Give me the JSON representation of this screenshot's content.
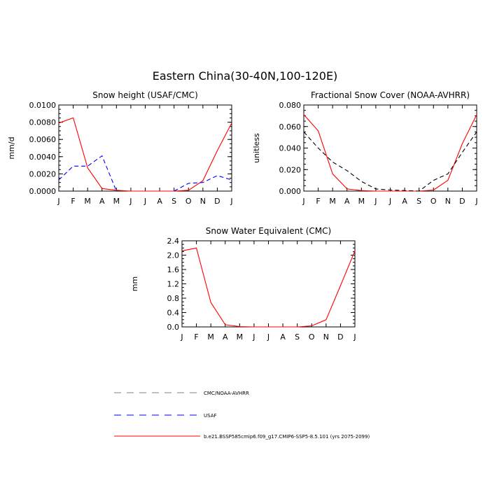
{
  "page_title": "Eastern China(30-40N,100-120E)",
  "legend": [
    {
      "label": "CMC/NOAA-AVHRR",
      "color": "#808080",
      "dash": "dashed"
    },
    {
      "label": "USAF",
      "color": "#0000ff",
      "dash": "dashed"
    },
    {
      "label": "b.e21.BSSP585cmip6.f09_g17.CMIP6-SSP5-8.5.101 (yrs 2075-2099)",
      "color": "#ff0000",
      "dash": "solid"
    }
  ],
  "chart_data": [
    {
      "type": "line",
      "title": "Snow height (USAF/CMC)",
      "ylabel": "mm/d",
      "categories": [
        "J",
        "F",
        "M",
        "A",
        "M",
        "J",
        "J",
        "A",
        "S",
        "O",
        "N",
        "D",
        "J"
      ],
      "ylim": [
        0,
        0.01
      ],
      "yticks": [
        "0.0000",
        "0.0020",
        "0.0040",
        "0.0060",
        "0.0080",
        "0.0100"
      ],
      "yminor": 0.0005,
      "series": [
        {
          "name": "b.e21.BSSP585cmip6.f09_g17.CMIP6-SSP5-8.5.101 (yrs 2075-2099)",
          "color": "#ff0000",
          "dash": "solid",
          "values": [
            0.0079,
            0.0085,
            0.0027,
            0.0003,
            0.0001,
            0.0,
            0.0,
            0.0,
            0.0,
            0.0001,
            0.0012,
            0.0047,
            0.0079
          ]
        },
        {
          "name": "USAF",
          "color": "#0000ff",
          "dash": "dashed",
          "values": [
            0.0013,
            0.0029,
            0.0029,
            0.0041,
            0.0,
            null,
            null,
            null,
            0.0,
            0.0009,
            0.001,
            0.0018,
            0.0013
          ]
        }
      ]
    },
    {
      "type": "line",
      "title": "Fractional Snow Cover (NOAA-AVHRR)",
      "ylabel": "unitless",
      "categories": [
        "J",
        "F",
        "M",
        "A",
        "M",
        "J",
        "J",
        "A",
        "S",
        "O",
        "N",
        "D",
        "J"
      ],
      "ylim": [
        0,
        0.08
      ],
      "yticks": [
        "0.000",
        "0.020",
        "0.040",
        "0.060",
        "0.080"
      ],
      "yminor": 0.005,
      "series": [
        {
          "name": "b.e21.BSSP585cmip6.f09_g17.CMIP6-SSP5-8.5.101 (yrs 2075-2099)",
          "color": "#ff0000",
          "dash": "solid",
          "values": [
            0.071,
            0.056,
            0.016,
            0.002,
            0.0005,
            0.0,
            0.0,
            0.0,
            0.0,
            0.001,
            0.01,
            0.044,
            0.071
          ]
        },
        {
          "name": "CMC/NOAA-AVHRR",
          "color": "#000000",
          "dash": "dashed",
          "values": [
            0.055,
            0.04,
            0.027,
            0.019,
            0.009,
            0.002,
            0.001,
            0.0005,
            0.0,
            0.01,
            0.016,
            0.036,
            0.055
          ]
        }
      ]
    },
    {
      "type": "line",
      "title": "Snow Water Equivalent (CMC)",
      "ylabel": "mm",
      "categories": [
        "J",
        "F",
        "M",
        "A",
        "M",
        "J",
        "J",
        "A",
        "S",
        "O",
        "N",
        "D",
        "J"
      ],
      "ylim": [
        0,
        2.4
      ],
      "yticks": [
        "0.0",
        "0.4",
        "0.8",
        "1.2",
        "1.6",
        "2.0",
        "2.4"
      ],
      "yminor": 0.1,
      "series": [
        {
          "name": "b.e21.BSSP585cmip6.f09_g17.CMIP6-SSP5-8.5.101 (yrs 2075-2099)",
          "color": "#ff0000",
          "dash": "solid",
          "values": [
            2.12,
            2.2,
            0.68,
            0.06,
            0.01,
            0.0,
            0.0,
            0.0,
            0.0,
            0.03,
            0.2,
            1.15,
            2.12
          ]
        }
      ]
    }
  ]
}
